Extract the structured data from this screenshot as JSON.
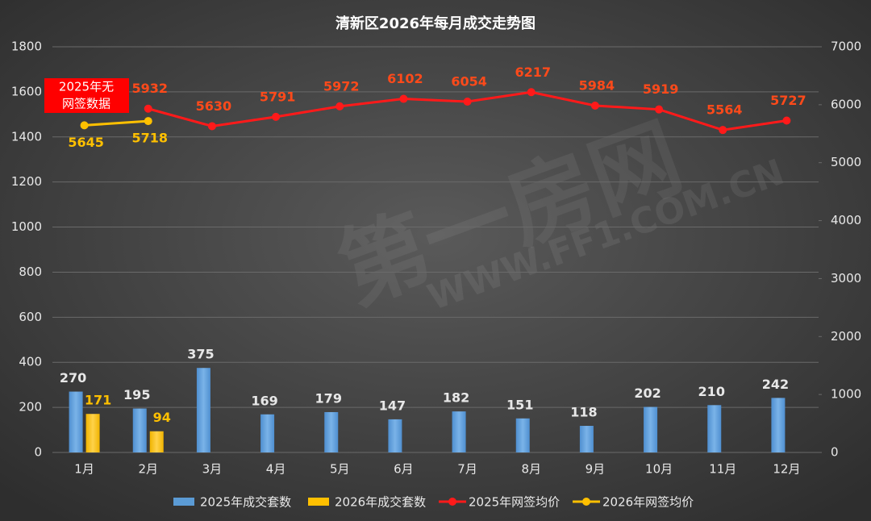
{
  "chart_data": {
    "type": "bar-line",
    "title": "清新区2026年每月成交走势图",
    "categories": [
      "1月",
      "2月",
      "3月",
      "4月",
      "5月",
      "6月",
      "7月",
      "8月",
      "9月",
      "10月",
      "11月",
      "12月"
    ],
    "series": [
      {
        "name": "2025年成交套数",
        "type": "bar",
        "color": "#5b9bd5",
        "values": [
          270,
          195,
          375,
          169,
          179,
          147,
          182,
          151,
          118,
          202,
          210,
          242
        ]
      },
      {
        "name": "2026年成交套数",
        "type": "bar",
        "color": "#ffc000",
        "values": [
          171,
          94,
          null,
          null,
          null,
          null,
          null,
          null,
          null,
          null,
          null,
          null
        ]
      },
      {
        "name": "2025年网签均价",
        "type": "line",
        "axis": "y2",
        "color": "#ff1a1a",
        "values": [
          null,
          5932,
          5630,
          5791,
          5972,
          6102,
          6054,
          6217,
          5984,
          5919,
          5564,
          5727
        ]
      },
      {
        "name": "2026年网签均价",
        "type": "line",
        "axis": "y2",
        "color": "#ffc000",
        "values": [
          5645,
          5718,
          null,
          null,
          null,
          null,
          null,
          null,
          null,
          null,
          null,
          null
        ]
      }
    ],
    "ylim": [
      0,
      1800
    ],
    "yticks": [
      0,
      200,
      400,
      600,
      800,
      1000,
      1200,
      1400,
      1600,
      1800
    ],
    "y2lim": [
      0,
      7000
    ],
    "y2ticks": [
      0,
      1000,
      2000,
      3000,
      4000,
      5000,
      6000,
      7000
    ],
    "grid": true,
    "legend": "bottom",
    "annotation": [
      "2025年无",
      "网签数据"
    ],
    "watermark": [
      "第一房网",
      "WWW.FF1.COM.CN"
    ]
  }
}
